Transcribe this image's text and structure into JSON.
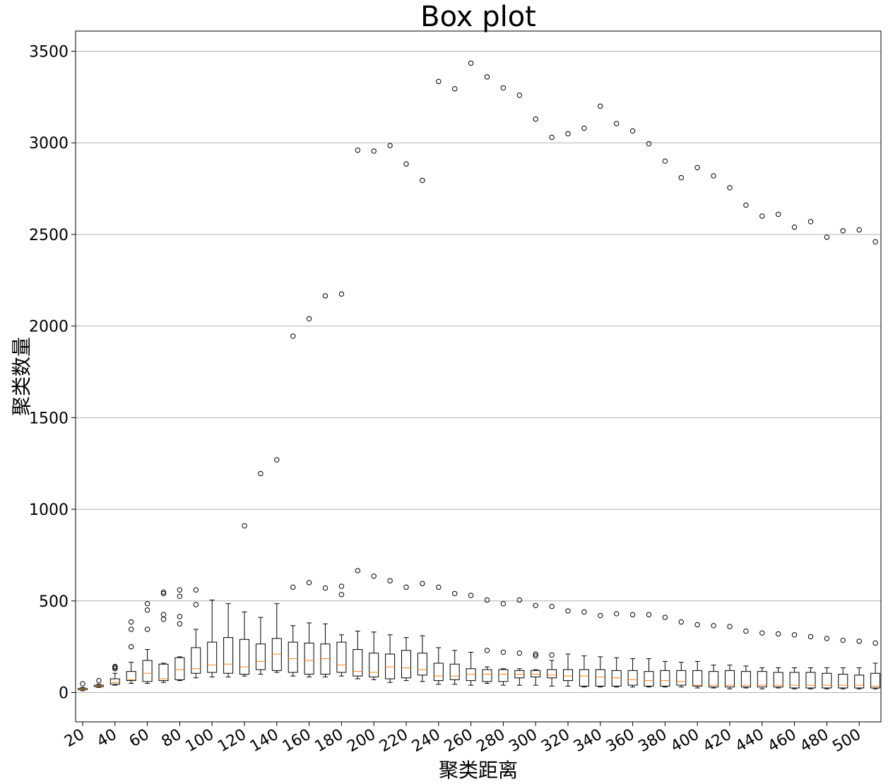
{
  "chart_data": {
    "type": "box",
    "title": "Box plot",
    "xlabel": "聚类距离",
    "ylabel": "聚类数量",
    "ylim": [
      -160,
      3610
    ],
    "yticks": [
      0,
      500,
      1000,
      1500,
      2000,
      2500,
      3000,
      3500
    ],
    "ytick_labels": [
      "0",
      "500",
      "1000",
      "1500",
      "2000",
      "2500",
      "3000",
      "3500"
    ],
    "xtick_labels": [
      "20",
      "40",
      "60",
      "80",
      "100",
      "120",
      "140",
      "160",
      "180",
      "200",
      "220",
      "240",
      "260",
      "280",
      "300",
      "320",
      "340",
      "360",
      "380",
      "400",
      "420",
      "440",
      "460",
      "480",
      "500"
    ],
    "grid": "y",
    "median_color": "#ff7f0e",
    "box_color": "#000000",
    "categories": [
      20,
      30,
      40,
      50,
      60,
      70,
      80,
      90,
      100,
      110,
      120,
      130,
      140,
      150,
      160,
      170,
      180,
      190,
      200,
      210,
      220,
      230,
      240,
      250,
      260,
      270,
      280,
      290,
      300,
      310,
      320,
      330,
      340,
      350,
      360,
      370,
      380,
      390,
      400,
      410,
      420,
      430,
      440,
      450,
      460,
      470,
      480,
      490,
      500,
      510
    ],
    "boxes": [
      {
        "x": 20,
        "wl": 10,
        "q1": 15,
        "med": 17,
        "q3": 22,
        "wh": 28,
        "fliers": [
          48
        ]
      },
      {
        "x": 30,
        "wl": 28,
        "q1": 32,
        "med": 35,
        "q3": 40,
        "wh": 45,
        "fliers": [
          65
        ]
      },
      {
        "x": 40,
        "wl": 40,
        "q1": 45,
        "med": 55,
        "q3": 75,
        "wh": 105,
        "fliers": [
          130,
          137,
          142
        ]
      },
      {
        "x": 50,
        "wl": 50,
        "q1": 65,
        "med": 70,
        "q3": 115,
        "wh": 165,
        "fliers": [
          250,
          345,
          385
        ]
      },
      {
        "x": 60,
        "wl": 50,
        "q1": 60,
        "med": 105,
        "q3": 175,
        "wh": 235,
        "fliers": [
          345,
          450,
          485
        ]
      },
      {
        "x": 70,
        "wl": 55,
        "q1": 65,
        "med": 75,
        "q3": 155,
        "wh": 160,
        "fliers": [
          400,
          425,
          540,
          548
        ]
      },
      {
        "x": 80,
        "wl": 65,
        "q1": 70,
        "med": 125,
        "q3": 190,
        "wh": 195,
        "fliers": [
          375,
          415,
          525,
          560
        ]
      },
      {
        "x": 90,
        "wl": 80,
        "q1": 105,
        "med": 130,
        "q3": 245,
        "wh": 345,
        "fliers": [
          480,
          560
        ]
      },
      {
        "x": 100,
        "wl": 85,
        "q1": 110,
        "med": 150,
        "q3": 275,
        "wh": 505,
        "fliers": []
      },
      {
        "x": 110,
        "wl": 85,
        "q1": 105,
        "med": 155,
        "q3": 300,
        "wh": 485,
        "fliers": []
      },
      {
        "x": 120,
        "wl": 90,
        "q1": 100,
        "med": 140,
        "q3": 290,
        "wh": 440,
        "fliers": [
          910
        ]
      },
      {
        "x": 130,
        "wl": 100,
        "q1": 125,
        "med": 170,
        "q3": 265,
        "wh": 410,
        "fliers": [
          1195
        ]
      },
      {
        "x": 140,
        "wl": 110,
        "q1": 120,
        "med": 210,
        "q3": 295,
        "wh": 485,
        "fliers": [
          1270
        ]
      },
      {
        "x": 150,
        "wl": 90,
        "q1": 110,
        "med": 185,
        "q3": 275,
        "wh": 365,
        "fliers": [
          575,
          1945
        ]
      },
      {
        "x": 160,
        "wl": 85,
        "q1": 100,
        "med": 175,
        "q3": 270,
        "wh": 380,
        "fliers": [
          600,
          2040
        ]
      },
      {
        "x": 170,
        "wl": 85,
        "q1": 100,
        "med": 185,
        "q3": 265,
        "wh": 375,
        "fliers": [
          570,
          2165
        ]
      },
      {
        "x": 180,
        "wl": 90,
        "q1": 110,
        "med": 150,
        "q3": 275,
        "wh": 315,
        "fliers": [
          535,
          580,
          2175
        ]
      },
      {
        "x": 190,
        "wl": 75,
        "q1": 90,
        "med": 115,
        "q3": 235,
        "wh": 335,
        "fliers": [
          665,
          2960
        ]
      },
      {
        "x": 200,
        "wl": 70,
        "q1": 85,
        "med": 110,
        "q3": 215,
        "wh": 330,
        "fliers": [
          635,
          2955
        ]
      },
      {
        "x": 210,
        "wl": 55,
        "q1": 75,
        "med": 140,
        "q3": 210,
        "wh": 315,
        "fliers": [
          610,
          2985
        ]
      },
      {
        "x": 220,
        "wl": 65,
        "q1": 80,
        "med": 135,
        "q3": 230,
        "wh": 300,
        "fliers": [
          575,
          2885
        ]
      },
      {
        "x": 230,
        "wl": 60,
        "q1": 95,
        "med": 125,
        "q3": 215,
        "wh": 310,
        "fliers": [
          595,
          2795
        ]
      },
      {
        "x": 240,
        "wl": 45,
        "q1": 65,
        "med": 90,
        "q3": 160,
        "wh": 245,
        "fliers": [
          575,
          3335
        ]
      },
      {
        "x": 250,
        "wl": 45,
        "q1": 70,
        "med": 90,
        "q3": 155,
        "wh": 230,
        "fliers": [
          540,
          3295
        ]
      },
      {
        "x": 260,
        "wl": 40,
        "q1": 65,
        "med": 100,
        "q3": 130,
        "wh": 220,
        "fliers": [
          530,
          3435
        ]
      },
      {
        "x": 270,
        "wl": 50,
        "q1": 60,
        "med": 100,
        "q3": 125,
        "wh": 140,
        "fliers": [
          230,
          505,
          3360
        ]
      },
      {
        "x": 280,
        "wl": 40,
        "q1": 60,
        "med": 100,
        "q3": 125,
        "wh": 130,
        "fliers": [
          220,
          485,
          3300
        ]
      },
      {
        "x": 290,
        "wl": 40,
        "q1": 80,
        "med": 100,
        "q3": 120,
        "wh": 130,
        "fliers": [
          215,
          505,
          3260
        ]
      },
      {
        "x": 300,
        "wl": 40,
        "q1": 85,
        "med": 100,
        "q3": 120,
        "wh": 125,
        "fliers": [
          200,
          210,
          475,
          3130
        ]
      },
      {
        "x": 310,
        "wl": 35,
        "q1": 80,
        "med": 95,
        "q3": 125,
        "wh": 175,
        "fliers": [
          205,
          470,
          3030
        ]
      },
      {
        "x": 320,
        "wl": 35,
        "q1": 65,
        "med": 90,
        "q3": 125,
        "wh": 210,
        "fliers": [
          445,
          3050
        ]
      },
      {
        "x": 330,
        "wl": 30,
        "q1": 35,
        "med": 90,
        "q3": 125,
        "wh": 200,
        "fliers": [
          440,
          3080
        ]
      },
      {
        "x": 340,
        "wl": 30,
        "q1": 35,
        "med": 85,
        "q3": 125,
        "wh": 195,
        "fliers": [
          420,
          3200
        ]
      },
      {
        "x": 350,
        "wl": 30,
        "q1": 35,
        "med": 80,
        "q3": 120,
        "wh": 190,
        "fliers": [
          430,
          3105
        ]
      },
      {
        "x": 360,
        "wl": 30,
        "q1": 40,
        "med": 70,
        "q3": 120,
        "wh": 185,
        "fliers": [
          425,
          3065
        ]
      },
      {
        "x": 370,
        "wl": 30,
        "q1": 35,
        "med": 65,
        "q3": 115,
        "wh": 185,
        "fliers": [
          425,
          2995
        ]
      },
      {
        "x": 380,
        "wl": 30,
        "q1": 35,
        "med": 65,
        "q3": 120,
        "wh": 170,
        "fliers": [
          410,
          2900
        ]
      },
      {
        "x": 390,
        "wl": 30,
        "q1": 40,
        "med": 60,
        "q3": 120,
        "wh": 165,
        "fliers": [
          385,
          2810
        ]
      },
      {
        "x": 400,
        "wl": 25,
        "q1": 35,
        "med": 40,
        "q3": 120,
        "wh": 170,
        "fliers": [
          370,
          2865
        ]
      },
      {
        "x": 410,
        "wl": 25,
        "q1": 30,
        "med": 40,
        "q3": 115,
        "wh": 150,
        "fliers": [
          365,
          2820
        ]
      },
      {
        "x": 420,
        "wl": 20,
        "q1": 30,
        "med": 40,
        "q3": 120,
        "wh": 150,
        "fliers": [
          360,
          2755
        ]
      },
      {
        "x": 430,
        "wl": 25,
        "q1": 30,
        "med": 40,
        "q3": 115,
        "wh": 145,
        "fliers": [
          335,
          2660
        ]
      },
      {
        "x": 440,
        "wl": 20,
        "q1": 30,
        "med": 40,
        "q3": 115,
        "wh": 135,
        "fliers": [
          325,
          2600
        ]
      },
      {
        "x": 450,
        "wl": 25,
        "q1": 30,
        "med": 40,
        "q3": 110,
        "wh": 135,
        "fliers": [
          320,
          2610
        ]
      },
      {
        "x": 460,
        "wl": 20,
        "q1": 25,
        "med": 40,
        "q3": 110,
        "wh": 135,
        "fliers": [
          315,
          2540
        ]
      },
      {
        "x": 470,
        "wl": 20,
        "q1": 25,
        "med": 40,
        "q3": 110,
        "wh": 135,
        "fliers": [
          305,
          2570
        ]
      },
      {
        "x": 480,
        "wl": 20,
        "q1": 25,
        "med": 40,
        "q3": 105,
        "wh": 135,
        "fliers": [
          295,
          2485
        ]
      },
      {
        "x": 490,
        "wl": 20,
        "q1": 25,
        "med": 40,
        "q3": 100,
        "wh": 135,
        "fliers": [
          285,
          2520
        ]
      },
      {
        "x": 500,
        "wl": 20,
        "q1": 25,
        "med": 40,
        "q3": 95,
        "wh": 135,
        "fliers": [
          280,
          2525
        ]
      },
      {
        "x": 510,
        "wl": 20,
        "q1": 25,
        "med": 35,
        "q3": 105,
        "wh": 160,
        "fliers": [
          270,
          2460
        ]
      }
    ]
  }
}
